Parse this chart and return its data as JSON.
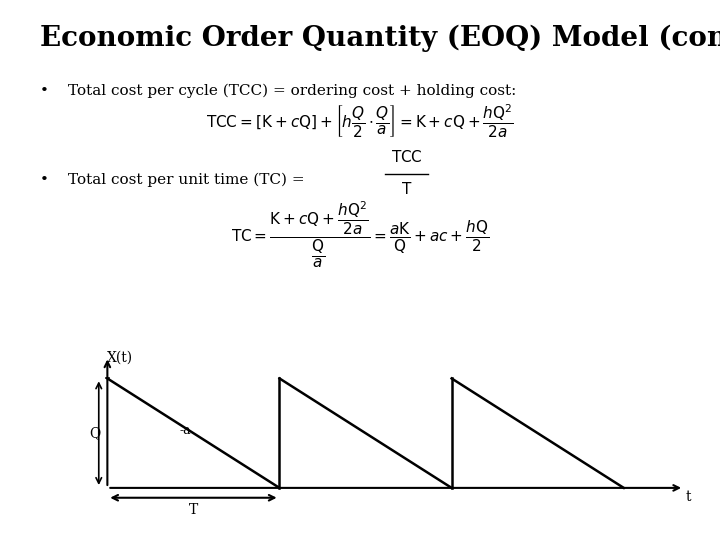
{
  "title": "Economic Order Quantity (EOQ) Model (cont.)",
  "title_fontsize": 20,
  "title_fontweight": "bold",
  "background_color": "#ffffff",
  "bullet1_text": "Total cost per cycle (TCC) = ordering cost + holding cost:",
  "bullet2_text": "Total cost per unit time (TC) = ",
  "line_color": "#000000",
  "text_color": "#000000",
  "bullet_fontsize": 11,
  "formula_fontsize": 11,
  "graph_sawtooth_cycles": 3,
  "graph_Q_label": "Q",
  "graph_Xt_label": "X(t)",
  "graph_T_label": "T",
  "graph_t_label": "t",
  "graph_slope_label": "-a"
}
